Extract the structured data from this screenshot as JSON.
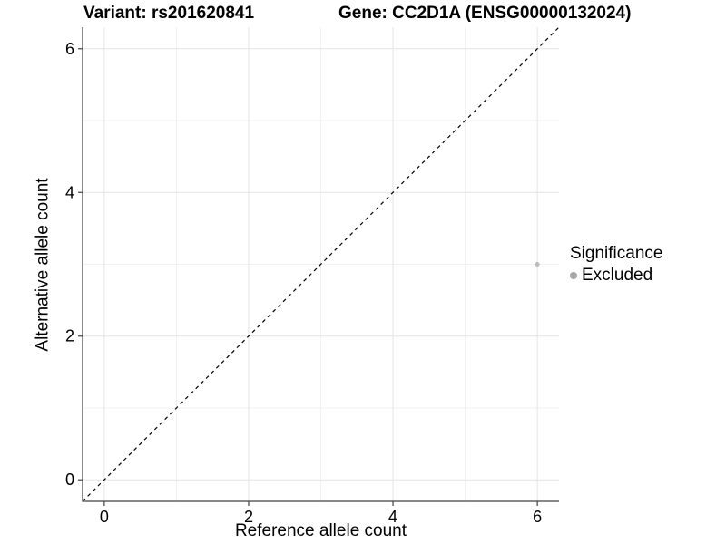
{
  "titles": {
    "variant": "Variant: rs201620841",
    "gene": "Gene: CC2D1A (ENSG00000132024)"
  },
  "axes": {
    "x_label": "Reference allele count",
    "y_label": "Alternative allele count"
  },
  "legend": {
    "title": "Significance",
    "items": [
      {
        "label": "Excluded",
        "color": "#a6a6a6"
      }
    ]
  },
  "chart_data": {
    "type": "scatter",
    "title": "Variant: rs201620841   Gene: CC2D1A (ENSG00000132024)",
    "xlabel": "Reference allele count",
    "ylabel": "Alternative allele count",
    "xlim": [
      -0.3,
      6.3
    ],
    "ylim": [
      -0.3,
      6.3
    ],
    "x_major_ticks": [
      0,
      2,
      4,
      6
    ],
    "y_major_ticks": [
      0,
      2,
      4,
      6
    ],
    "x_minor_ticks": [
      1,
      3,
      5
    ],
    "y_minor_ticks": [
      1,
      3,
      5
    ],
    "grid": "major and minor gridlines on",
    "legend_position": "right",
    "series": [
      {
        "name": "Excluded",
        "color": "#bcbcbc",
        "points": [
          {
            "x": 6,
            "y": 3
          }
        ]
      }
    ],
    "reference_line": {
      "description": "identity line y = x, panel corner to corner",
      "slope": 1,
      "intercept": 0,
      "style": "dashed",
      "color": "#000000"
    }
  },
  "style": {
    "point_color": "#bcbcbc",
    "legend_dot_color": "#a6a6a6",
    "grid_major_color": "#e4e4e4",
    "grid_minor_color": "#f0f0f0",
    "axis_line_color": "#404040",
    "text_color": "#000000",
    "tick_font_px": 18
  }
}
